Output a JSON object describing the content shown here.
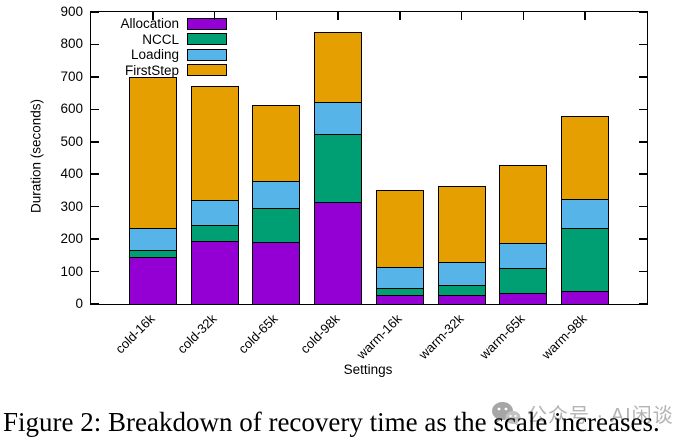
{
  "chart_data": {
    "type": "bar",
    "stacked": true,
    "title": "",
    "xlabel": "Settings",
    "ylabel": "Duration (seconds)",
    "ylim": [
      0,
      900
    ],
    "yticks": [
      0,
      100,
      200,
      300,
      400,
      500,
      600,
      700,
      800,
      900
    ],
    "grid": false,
    "legend_position": "top-left-inside",
    "categories": [
      "cold-16k",
      "cold-32k",
      "cold-65k",
      "cold-98k",
      "warm-16k",
      "warm-32k",
      "warm-65k",
      "warm-98k"
    ],
    "series": [
      {
        "name": "Allocation",
        "color": "#9400D3",
        "values": [
          145,
          195,
          190,
          313,
          28,
          29,
          34,
          40
        ]
      },
      {
        "name": "NCCL",
        "color": "#009E73",
        "values": [
          22,
          48,
          107,
          212,
          20,
          30,
          78,
          194
        ]
      },
      {
        "name": "Loading",
        "color": "#56B4E9",
        "values": [
          67,
          77,
          82,
          98,
          67,
          70,
          76,
          89
        ]
      },
      {
        "name": "FirstStep",
        "color": "#E69F00",
        "values": [
          466,
          352,
          236,
          217,
          237,
          236,
          242,
          256
        ]
      }
    ],
    "totals": [
      700,
      672,
      615,
      840,
      352,
      365,
      430,
      579
    ]
  },
  "caption": "Figure 2: Breakdown of recovery time as the scale increases.",
  "watermark": {
    "text": "公众号 · AI闲谈"
  }
}
